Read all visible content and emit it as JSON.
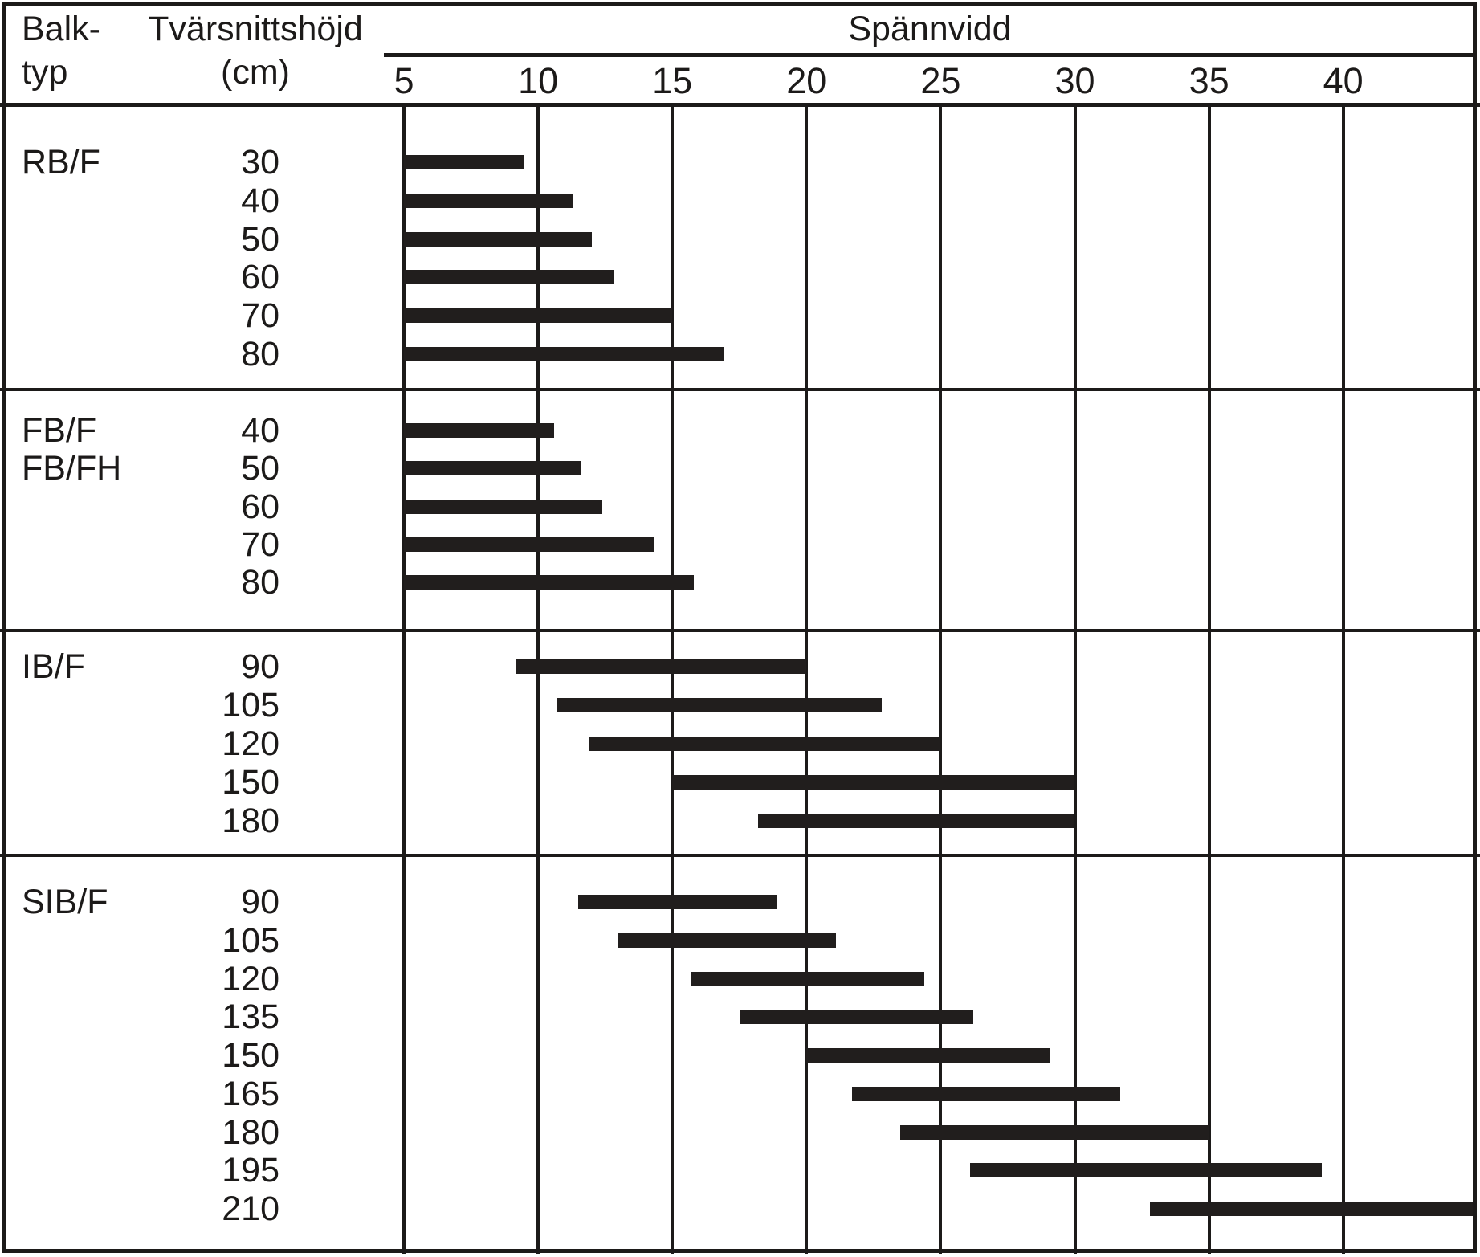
{
  "header": {
    "col1_line1": "Balk-",
    "col1_line2": "typ",
    "col2_line1": "Tvärsnittshöjd",
    "col2_line2": "(cm)"
  },
  "colors": {
    "bar": "#211e1d",
    "line": "#1c1a19",
    "text": "#1c1a19",
    "background": "#ffffff"
  },
  "chart_data": {
    "type": "bar",
    "orientation": "horizontal-range",
    "title": "Spännvidd",
    "xlabel": "Spännvidd",
    "ylabel": "Tvärsnittshöjd (cm)",
    "x_axis": {
      "unit": "m",
      "ticks": [
        5,
        10,
        15,
        20,
        25,
        30,
        35,
        40
      ],
      "range": [
        5,
        45
      ],
      "grid": true
    },
    "row_group_column_label": "Balk-typ",
    "groups": [
      {
        "beam_type": [
          "RB/F"
        ],
        "rows": [
          {
            "height_cm": 30,
            "span_m": [
              5.0,
              9.5
            ]
          },
          {
            "height_cm": 40,
            "span_m": [
              5.0,
              11.3
            ]
          },
          {
            "height_cm": 50,
            "span_m": [
              5.0,
              12.0
            ]
          },
          {
            "height_cm": 60,
            "span_m": [
              5.0,
              12.8
            ]
          },
          {
            "height_cm": 70,
            "span_m": [
              5.0,
              15.0
            ]
          },
          {
            "height_cm": 80,
            "span_m": [
              5.0,
              16.9
            ]
          }
        ]
      },
      {
        "beam_type": [
          "FB/F",
          "FB/FH"
        ],
        "rows": [
          {
            "height_cm": 40,
            "span_m": [
              5.0,
              10.6
            ]
          },
          {
            "height_cm": 50,
            "span_m": [
              5.0,
              11.6
            ]
          },
          {
            "height_cm": 60,
            "span_m": [
              5.0,
              12.4
            ]
          },
          {
            "height_cm": 70,
            "span_m": [
              5.0,
              14.3
            ]
          },
          {
            "height_cm": 80,
            "span_m": [
              5.0,
              15.8
            ]
          }
        ]
      },
      {
        "beam_type": [
          "IB/F"
        ],
        "rows": [
          {
            "height_cm": 90,
            "span_m": [
              9.2,
              20.0
            ]
          },
          {
            "height_cm": 105,
            "span_m": [
              10.7,
              22.8
            ]
          },
          {
            "height_cm": 120,
            "span_m": [
              11.9,
              25.0
            ]
          },
          {
            "height_cm": 150,
            "span_m": [
              15.0,
              30.0
            ]
          },
          {
            "height_cm": 180,
            "span_m": [
              18.2,
              30.0
            ]
          }
        ]
      },
      {
        "beam_type": [
          "SIB/F"
        ],
        "rows": [
          {
            "height_cm": 90,
            "span_m": [
              11.5,
              18.9
            ]
          },
          {
            "height_cm": 105,
            "span_m": [
              13.0,
              21.1
            ]
          },
          {
            "height_cm": 120,
            "span_m": [
              15.7,
              24.4
            ]
          },
          {
            "height_cm": 135,
            "span_m": [
              17.5,
              26.2
            ]
          },
          {
            "height_cm": 150,
            "span_m": [
              20.0,
              29.1
            ]
          },
          {
            "height_cm": 165,
            "span_m": [
              21.7,
              31.7
            ]
          },
          {
            "height_cm": 180,
            "span_m": [
              23.5,
              35.0
            ]
          },
          {
            "height_cm": 195,
            "span_m": [
              26.1,
              39.2
            ]
          },
          {
            "height_cm": 210,
            "span_m": [
              32.8,
              45.0
            ]
          }
        ]
      }
    ]
  }
}
